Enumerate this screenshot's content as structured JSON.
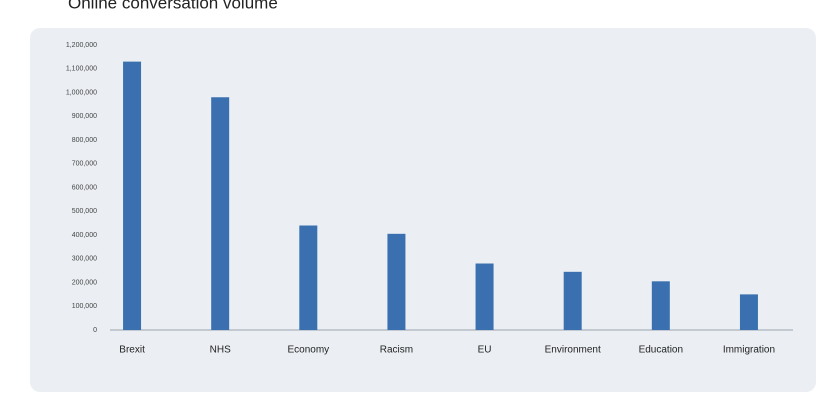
{
  "chart_data": {
    "type": "bar",
    "title": "Online conversation volume",
    "categories": [
      "Brexit",
      "NHS",
      "Economy",
      "Racism",
      "EU",
      "Environment",
      "Education",
      "Immigration"
    ],
    "values": [
      1130000,
      980000,
      440000,
      405000,
      280000,
      245000,
      205000,
      150000
    ],
    "color": "#3a70b0",
    "ylim": [
      0,
      1200000
    ],
    "yticks": [
      0,
      {
        "value": 100000,
        "label": "100,000"
      },
      {
        "value": 200000,
        "label": "200,000"
      },
      {
        "value": 300000,
        "label": "300,000"
      },
      {
        "value": 400000,
        "label": "400,000"
      },
      {
        "value": 500000,
        "label": "500,000"
      },
      {
        "value": 600000,
        "label": "600,000"
      },
      {
        "value": 700000,
        "label": "700,000"
      },
      {
        "value": 800000,
        "label": "800,000"
      },
      {
        "value": 900000,
        "label": "900,000"
      },
      {
        "value": 1000000,
        "label": "1,000,000"
      },
      {
        "value": 1100000,
        "label": "1,100,000"
      },
      {
        "value": 1200000,
        "label": "1,200,000"
      }
    ],
    "grid": false
  }
}
